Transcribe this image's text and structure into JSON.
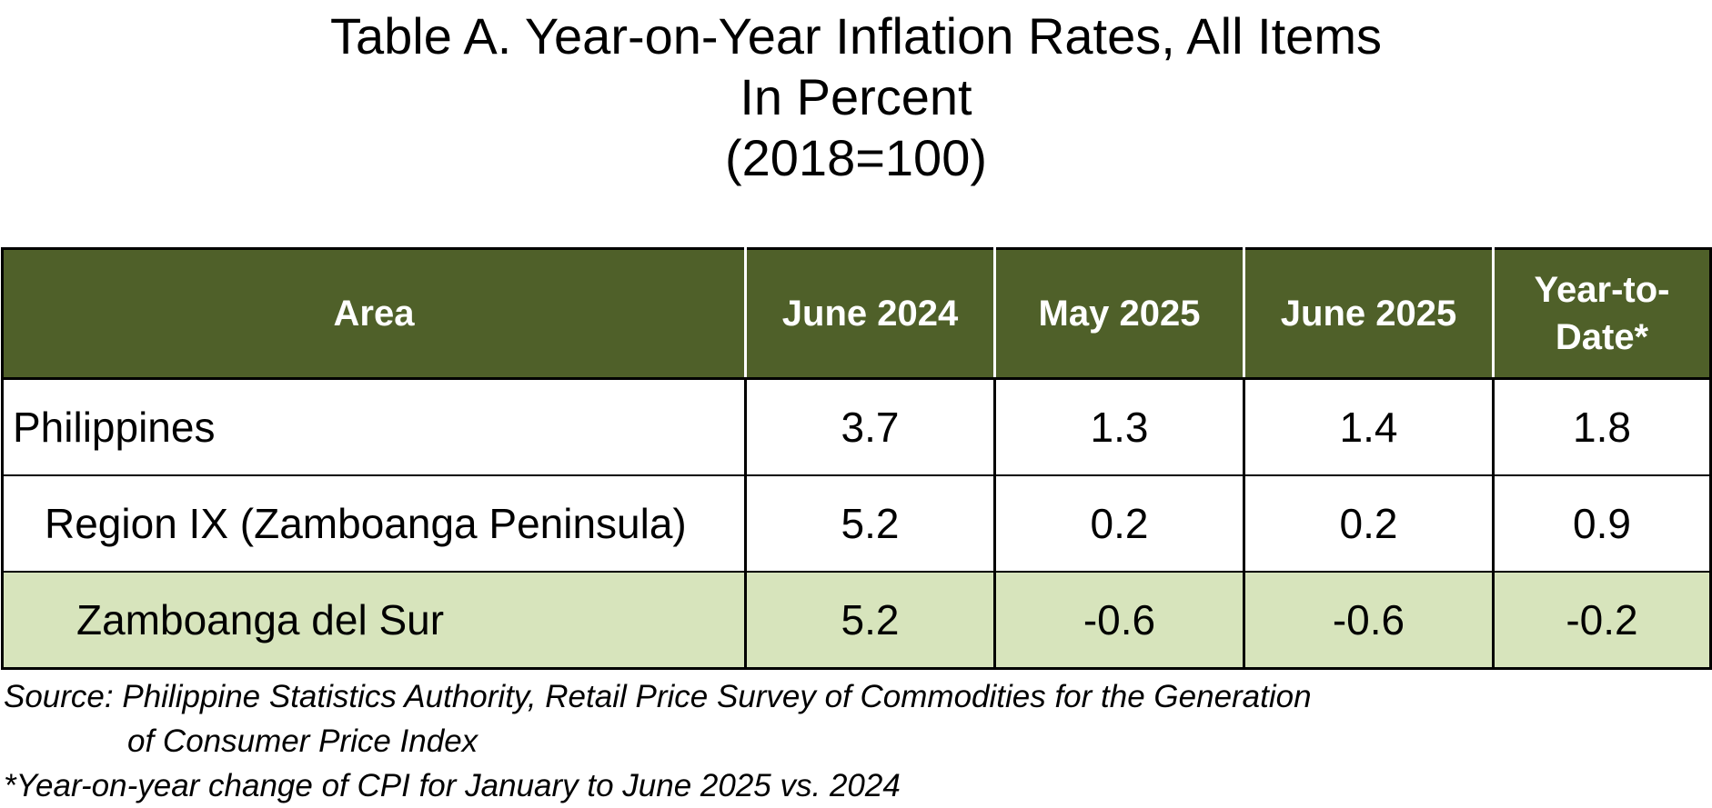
{
  "title": {
    "line1": "Table A.  Year-on-Year Inflation Rates, All Items",
    "line2": "In Percent",
    "line3": "(2018=100)"
  },
  "colors": {
    "header_bg": "#4f6029",
    "header_text": "#ffffff",
    "highlight_row_bg": "#d7e4bc",
    "border": "#000000"
  },
  "chart_data": {
    "type": "table",
    "title": "Table A.  Year-on-Year Inflation Rates, All Items",
    "subtitle": "In Percent (2018=100)",
    "columns": [
      "Area",
      "June 2024",
      "May 2025",
      "June 2025",
      "Year-to-Date*"
    ],
    "rows": [
      {
        "area": "Philippines",
        "values": [
          "3.7",
          "1.3",
          "1.4",
          "1.8"
        ]
      },
      {
        "area": "Region IX (Zamboanga Peninsula)",
        "values": [
          "5.2",
          "0.2",
          "0.2",
          "0.9"
        ]
      },
      {
        "area": "Zamboanga del Sur",
        "values": [
          "5.2",
          "-0.6",
          "-0.6",
          "-0.2"
        ]
      }
    ]
  },
  "table": {
    "headers": {
      "area": "Area",
      "june_2024": "June 2024",
      "may_2025": "May 2025",
      "june_2025": "June 2025",
      "ytd_line1": "Year-to-",
      "ytd_line2": "Date*"
    }
  },
  "footnotes": {
    "source_line1": "Source: Philippine Statistics Authority, Retail Price Survey of Commodities for the Generation",
    "source_line2": "of Consumer Price Index",
    "ytd_note": "*Year-on-year change of CPI for January to June 2025 vs. 2024"
  }
}
